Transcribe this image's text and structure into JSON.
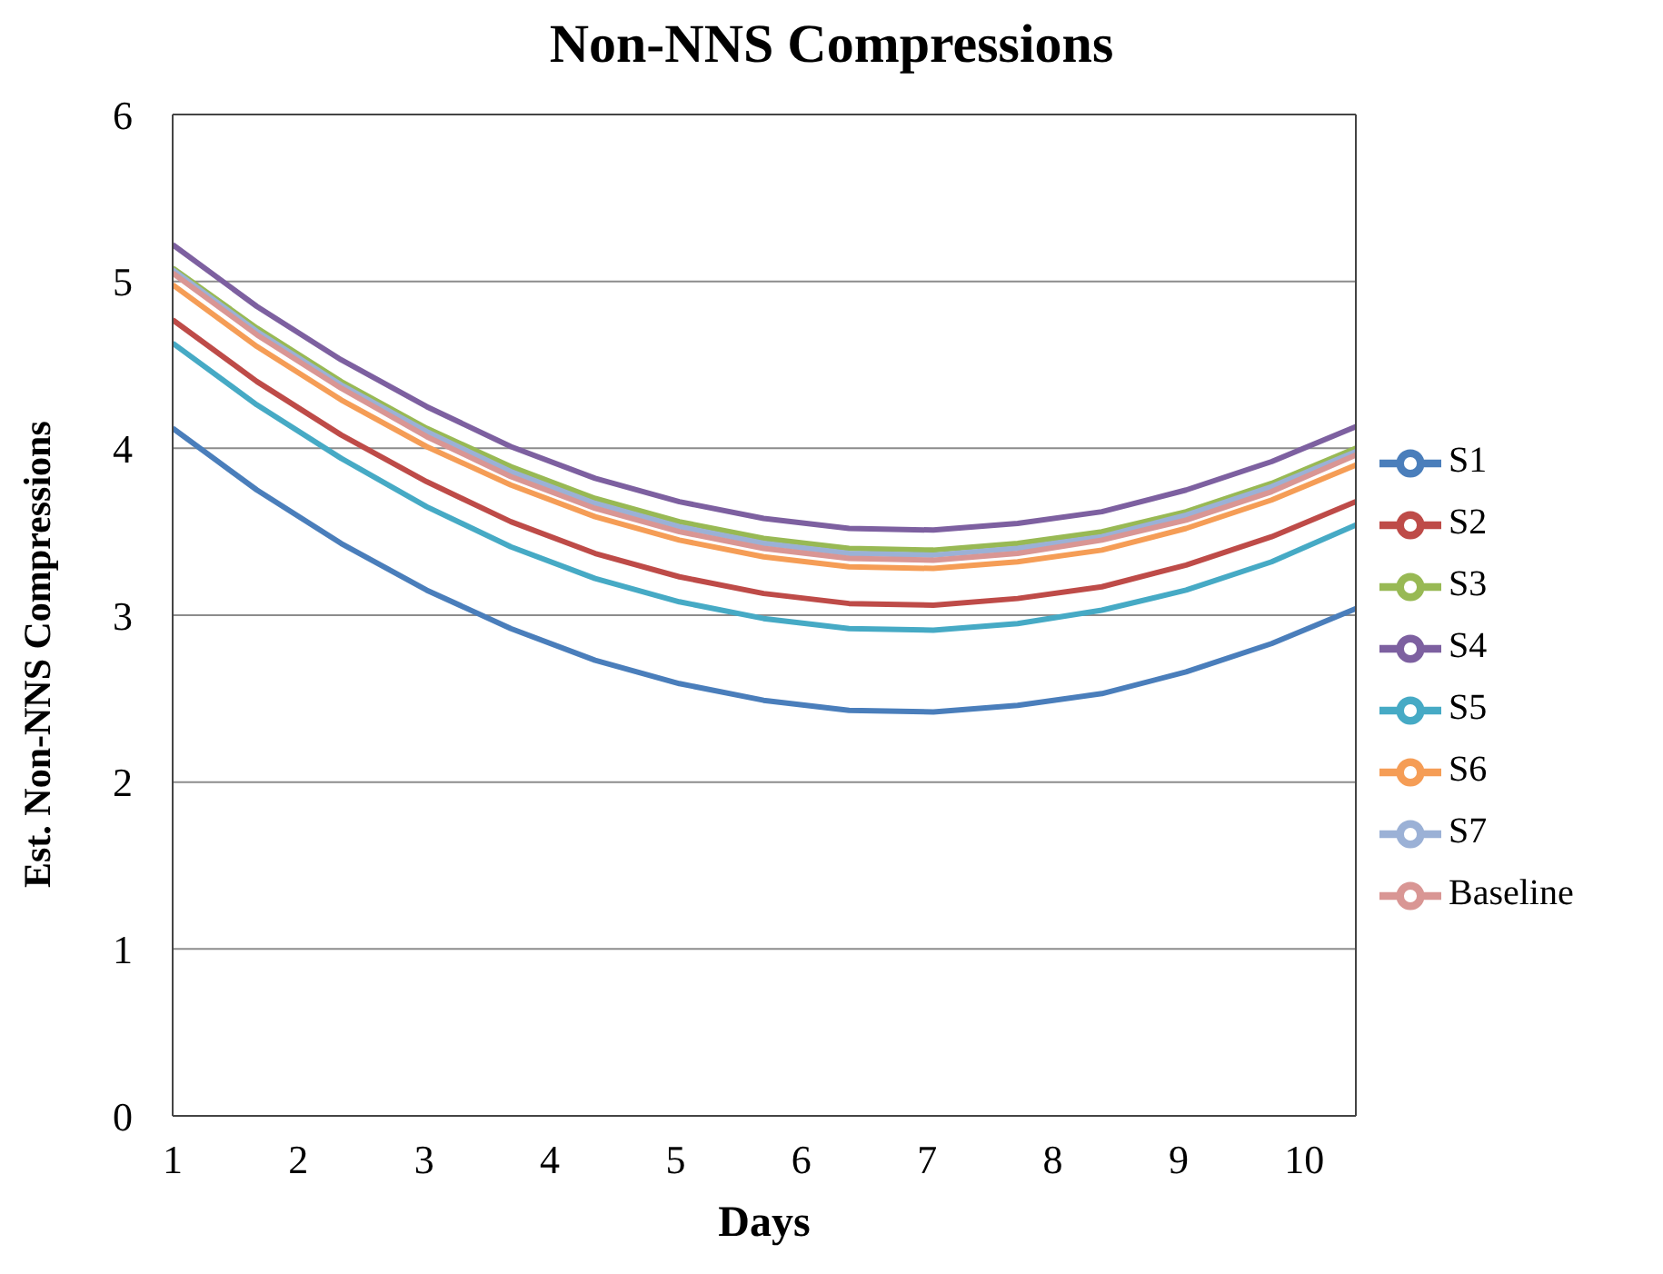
{
  "chart_data": {
    "type": "line",
    "title": "Non-NNS Compressions",
    "xlabel": "Days",
    "ylabel": "Est.  Non-NNS Compressions",
    "x": [
      1.0,
      1.67,
      2.34,
      3.02,
      3.69,
      4.36,
      5.03,
      5.7,
      6.38,
      7.05,
      7.72,
      8.39,
      9.06,
      9.74,
      10.41
    ],
    "xlim": [
      1,
      10.41
    ],
    "xticks": [
      1,
      2,
      3,
      4,
      5,
      6,
      7,
      8,
      9,
      10
    ],
    "ylim": [
      0,
      6
    ],
    "yticks": [
      0,
      1,
      2,
      3,
      4,
      5,
      6
    ],
    "grid": "y",
    "legend": "right",
    "marker": "none",
    "line_style": "solid",
    "series": [
      {
        "name": "S1",
        "color": "#4a7ebb",
        "values": [
          4.12,
          3.75,
          3.43,
          3.15,
          2.92,
          2.73,
          2.59,
          2.49,
          2.43,
          2.42,
          2.46,
          2.53,
          2.66,
          2.83,
          3.04
        ]
      },
      {
        "name": "S2",
        "color": "#be4b48",
        "values": [
          4.77,
          4.4,
          4.08,
          3.8,
          3.56,
          3.37,
          3.23,
          3.13,
          3.07,
          3.06,
          3.1,
          3.17,
          3.3,
          3.47,
          3.68
        ]
      },
      {
        "name": "S3",
        "color": "#98b954",
        "values": [
          5.08,
          4.72,
          4.4,
          4.12,
          3.89,
          3.7,
          3.56,
          3.46,
          3.4,
          3.39,
          3.43,
          3.5,
          3.62,
          3.79,
          4.0
        ]
      },
      {
        "name": "S4",
        "color": "#7d60a0",
        "values": [
          5.22,
          4.85,
          4.53,
          4.25,
          4.01,
          3.82,
          3.68,
          3.58,
          3.52,
          3.51,
          3.55,
          3.62,
          3.75,
          3.92,
          4.13
        ]
      },
      {
        "name": "S5",
        "color": "#46aac5",
        "values": [
          4.63,
          4.26,
          3.94,
          3.65,
          3.41,
          3.22,
          3.08,
          2.98,
          2.92,
          2.91,
          2.95,
          3.03,
          3.15,
          3.32,
          3.54
        ]
      },
      {
        "name": "S6",
        "color": "#f59d56",
        "values": [
          4.98,
          4.61,
          4.29,
          4.01,
          3.78,
          3.59,
          3.45,
          3.35,
          3.29,
          3.28,
          3.32,
          3.39,
          3.52,
          3.69,
          3.9
        ]
      },
      {
        "name": "S7",
        "color": "#9bb1d6",
        "values": [
          5.07,
          4.7,
          4.38,
          4.1,
          3.86,
          3.67,
          3.53,
          3.43,
          3.37,
          3.36,
          3.4,
          3.47,
          3.6,
          3.77,
          3.98
        ]
      },
      {
        "name": "Baseline",
        "color": "#d99694",
        "values": [
          5.05,
          4.68,
          4.36,
          4.07,
          3.83,
          3.64,
          3.5,
          3.4,
          3.34,
          3.33,
          3.37,
          3.45,
          3.57,
          3.74,
          3.96
        ]
      }
    ]
  }
}
